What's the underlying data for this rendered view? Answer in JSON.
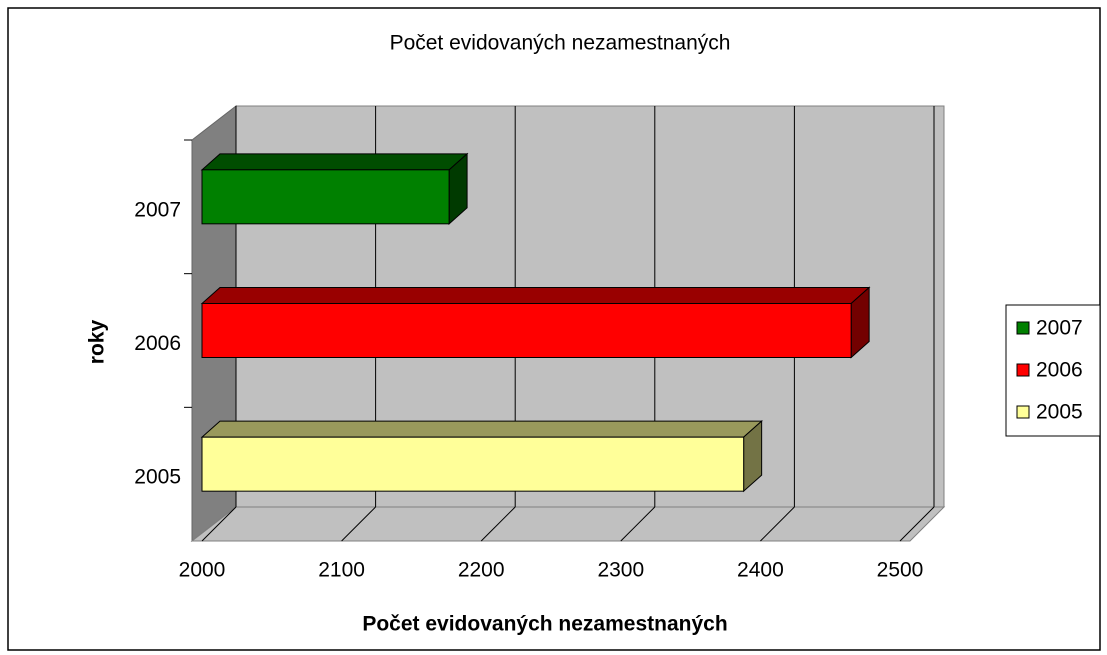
{
  "chart_data": {
    "type": "bar",
    "orientation": "horizontal",
    "title": "Počet evidovaných nezamestnaných",
    "x_label": "Počet evidovaných nezamestnaných",
    "y_label": "roky",
    "categories": [
      "2007",
      "2006",
      "2005"
    ],
    "values": [
      2177,
      2465,
      2388
    ],
    "colors": [
      "#008000",
      "#ff0000",
      "#ffff99"
    ],
    "xlim": [
      2000,
      2500
    ],
    "xticks": [
      2000,
      2100,
      2200,
      2300,
      2400,
      2500
    ],
    "grid": true,
    "legend": "right"
  }
}
